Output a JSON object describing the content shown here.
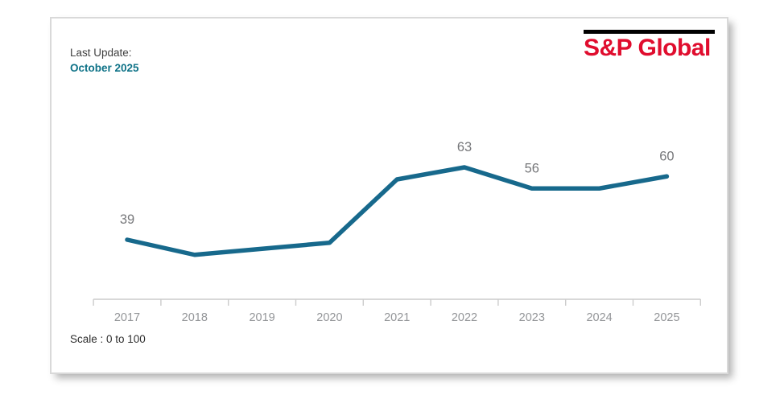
{
  "card": {
    "last_update": {
      "label": "Last Update:",
      "value": "October 2025"
    },
    "logo": {
      "text": "S&P Global"
    },
    "scale_note": "Scale : 0 to 100"
  },
  "colors": {
    "line": "#17698c",
    "accent_teal": "#0e7287",
    "logo_red": "#e00d2e",
    "logo_bar": "#000000",
    "data_label": "#77787b",
    "tick_label": "#939598",
    "axis": "#cccccc",
    "text_dark": "#404040",
    "card_border": "#d9d9d9"
  },
  "chart_data": {
    "type": "line",
    "title": "",
    "xlabel": "",
    "ylabel": "",
    "categories": [
      "2017",
      "2018",
      "2019",
      "2020",
      "2021",
      "2022",
      "2023",
      "2024",
      "2025"
    ],
    "series": [
      {
        "name": "",
        "values": [
          39,
          34,
          36,
          38,
          59,
          63,
          56,
          56,
          60
        ]
      }
    ],
    "point_labels": [
      39,
      null,
      null,
      null,
      null,
      63,
      56,
      null,
      60
    ],
    "ylim": [
      0,
      100
    ],
    "scale_note": "Scale : 0 to 100",
    "grid": false,
    "legend": false
  }
}
